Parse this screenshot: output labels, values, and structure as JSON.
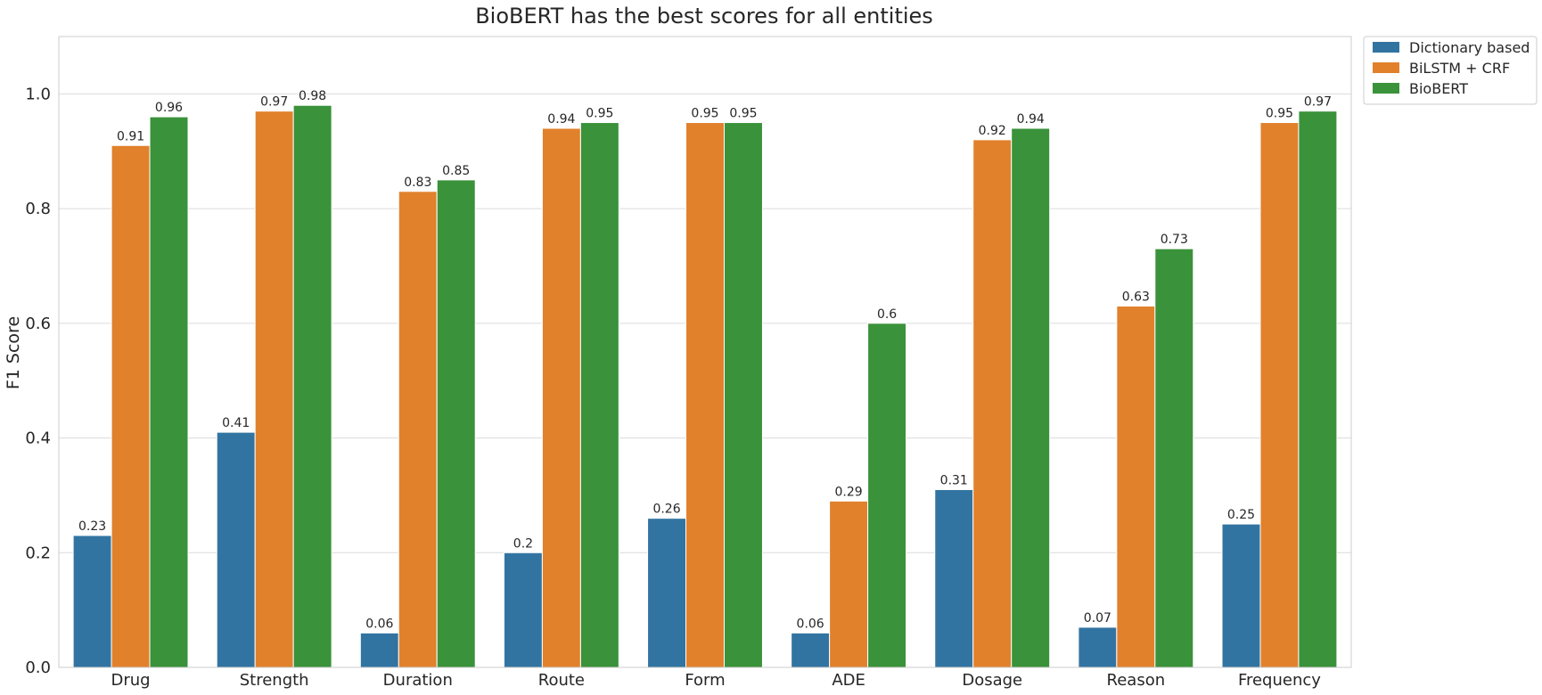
{
  "chart_data": {
    "type": "bar",
    "title": "BioBERT has the best scores for all entities",
    "xlabel": "",
    "ylabel": "F1 Score",
    "ylim": [
      0,
      1.1
    ],
    "yticks": [
      "0.0",
      "0.2",
      "0.4",
      "0.6",
      "0.8",
      "1.0"
    ],
    "grid": true,
    "legend_position": "outside-top-right",
    "categories": [
      "Drug",
      "Strength",
      "Duration",
      "Route",
      "Form",
      "ADE",
      "Dosage",
      "Reason",
      "Frequency"
    ],
    "series": [
      {
        "name": "Dictionary based",
        "color": "#3274a1",
        "values": [
          0.23,
          0.41,
          0.06,
          0.2,
          0.26,
          0.06,
          0.31,
          0.07,
          0.25
        ],
        "labels": [
          "0.23",
          "0.41",
          "0.06",
          "0.2",
          "0.26",
          "0.06",
          "0.31",
          "0.07",
          "0.25"
        ]
      },
      {
        "name": "BiLSTM + CRF",
        "color": "#e1812c",
        "values": [
          0.91,
          0.97,
          0.83,
          0.94,
          0.95,
          0.29,
          0.92,
          0.63,
          0.95
        ],
        "labels": [
          "0.91",
          "0.97",
          "0.83",
          "0.94",
          "0.95",
          "0.29",
          "0.92",
          "0.63",
          "0.95"
        ]
      },
      {
        "name": "BioBERT",
        "color": "#3a923a",
        "values": [
          0.96,
          0.98,
          0.85,
          0.95,
          0.95,
          0.6,
          0.94,
          0.73,
          0.97
        ],
        "labels": [
          "0.96",
          "0.98",
          "0.85",
          "0.95",
          "0.95",
          "0.6",
          "0.94",
          "0.73",
          "0.97"
        ]
      }
    ]
  }
}
